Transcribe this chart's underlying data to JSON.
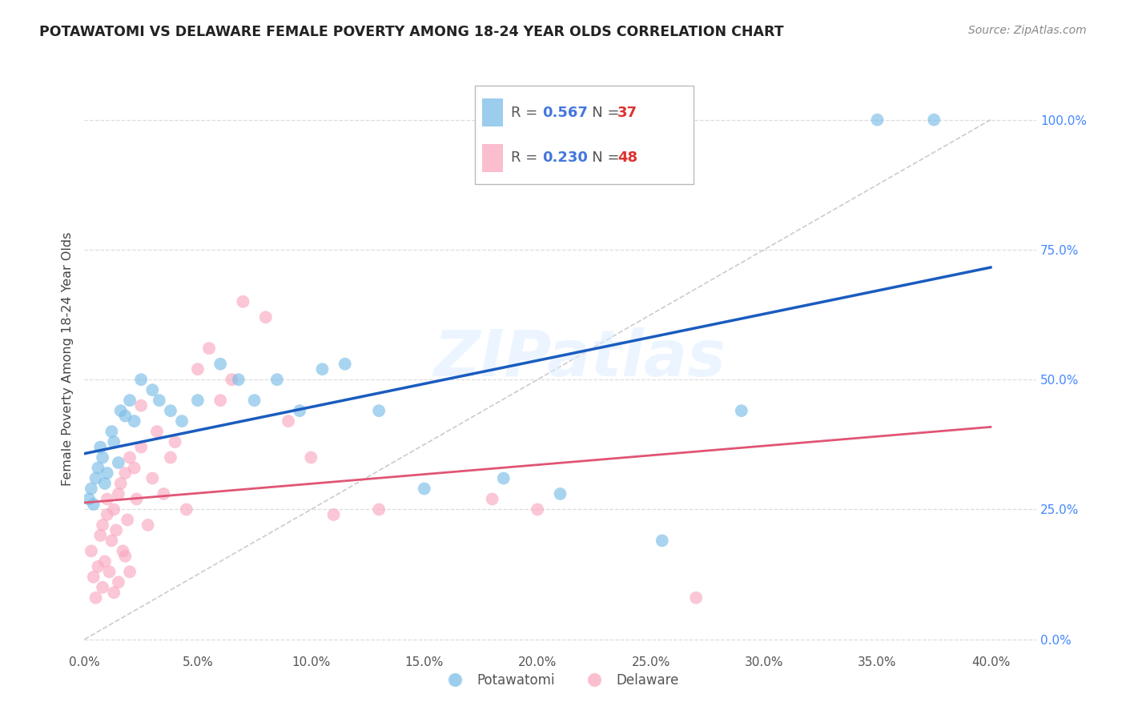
{
  "title": "POTAWATOMI VS DELAWARE FEMALE POVERTY AMONG 18-24 YEAR OLDS CORRELATION CHART",
  "source": "Source: ZipAtlas.com",
  "ylabel": "Female Poverty Among 18-24 Year Olds",
  "xlim": [
    0.0,
    0.42
  ],
  "ylim": [
    -0.02,
    1.1
  ],
  "y_axis_min": 0.0,
  "y_axis_max": 1.0,
  "potawatomi_color": "#7bbde8",
  "delaware_color": "#f9a8c0",
  "trendline_blue": "#1a5cbf",
  "trendline_pink": "#e05575",
  "refline_color": "#cccccc",
  "legend1_R": "0.567",
  "legend1_N": "37",
  "legend2_R": "0.230",
  "legend2_N": "48",
  "watermark": "ZIPatlas",
  "grid_color": "#dddddd",
  "bg_color": "#ffffff",
  "potawatomi_x": [
    0.002,
    0.003,
    0.004,
    0.005,
    0.006,
    0.007,
    0.008,
    0.009,
    0.01,
    0.012,
    0.013,
    0.015,
    0.016,
    0.018,
    0.02,
    0.022,
    0.025,
    0.03,
    0.033,
    0.038,
    0.043,
    0.05,
    0.06,
    0.068,
    0.075,
    0.085,
    0.095,
    0.105,
    0.115,
    0.13,
    0.15,
    0.185,
    0.21,
    0.255,
    0.29,
    0.35,
    0.375
  ],
  "potawatomi_y": [
    0.27,
    0.29,
    0.26,
    0.31,
    0.33,
    0.37,
    0.35,
    0.3,
    0.32,
    0.4,
    0.38,
    0.34,
    0.44,
    0.43,
    0.46,
    0.42,
    0.5,
    0.48,
    0.46,
    0.44,
    0.42,
    0.46,
    0.53,
    0.5,
    0.46,
    0.5,
    0.44,
    0.52,
    0.53,
    0.44,
    0.29,
    0.31,
    0.28,
    0.19,
    0.44,
    1.0,
    1.0
  ],
  "delaware_x": [
    0.003,
    0.004,
    0.005,
    0.006,
    0.007,
    0.008,
    0.008,
    0.009,
    0.01,
    0.01,
    0.011,
    0.012,
    0.013,
    0.013,
    0.014,
    0.015,
    0.015,
    0.016,
    0.017,
    0.018,
    0.018,
    0.019,
    0.02,
    0.02,
    0.022,
    0.023,
    0.025,
    0.025,
    0.028,
    0.03,
    0.032,
    0.035,
    0.038,
    0.04,
    0.045,
    0.05,
    0.055,
    0.06,
    0.065,
    0.07,
    0.08,
    0.09,
    0.1,
    0.11,
    0.13,
    0.18,
    0.2,
    0.27
  ],
  "delaware_y": [
    0.17,
    0.12,
    0.08,
    0.14,
    0.2,
    0.1,
    0.22,
    0.15,
    0.24,
    0.27,
    0.13,
    0.19,
    0.09,
    0.25,
    0.21,
    0.28,
    0.11,
    0.3,
    0.17,
    0.16,
    0.32,
    0.23,
    0.13,
    0.35,
    0.33,
    0.27,
    0.37,
    0.45,
    0.22,
    0.31,
    0.4,
    0.28,
    0.35,
    0.38,
    0.25,
    0.52,
    0.56,
    0.46,
    0.5,
    0.65,
    0.62,
    0.42,
    0.35,
    0.24,
    0.25,
    0.27,
    0.25,
    0.08
  ],
  "x_ticks": [
    0.0,
    0.05,
    0.1,
    0.15,
    0.2,
    0.25,
    0.3,
    0.35,
    0.4
  ],
  "y_ticks_right": [
    0.0,
    0.25,
    0.5,
    0.75,
    1.0
  ],
  "y_tick_labels": [
    "0.0%",
    "25.0%",
    "50.0%",
    "75.0%",
    "100.0%"
  ]
}
